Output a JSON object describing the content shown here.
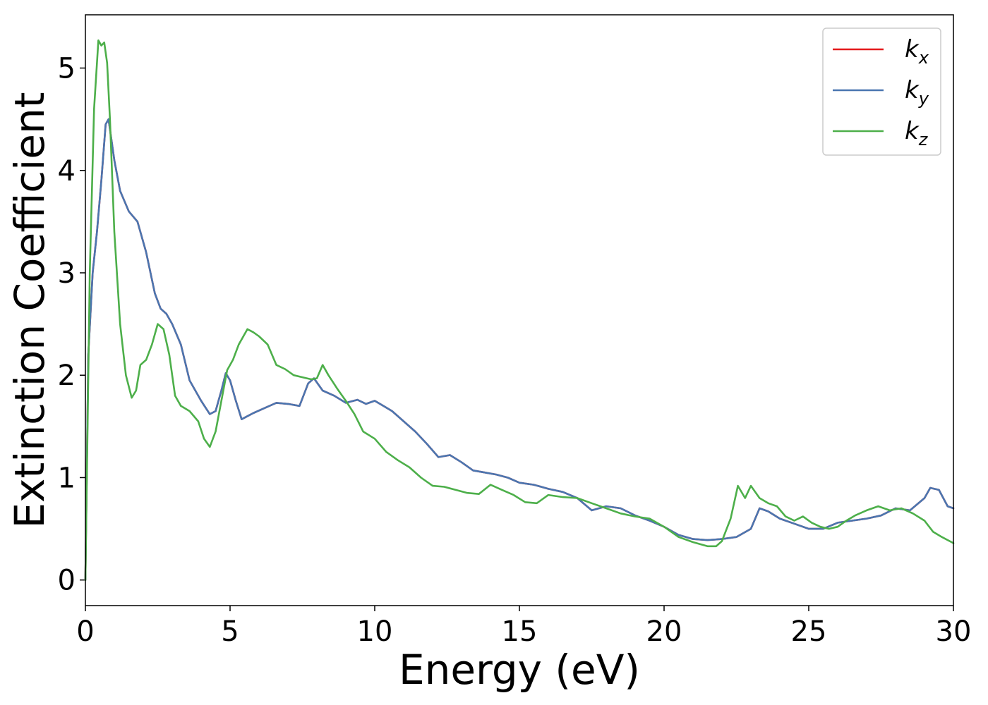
{
  "chart_data": {
    "type": "line",
    "xlabel": "Energy (eV)",
    "ylabel": "Extinction Coefficient",
    "xlim": [
      0,
      30
    ],
    "ylim": [
      -0.25,
      5.52
    ],
    "xticks": [
      0,
      5,
      10,
      15,
      20,
      25,
      30
    ],
    "yticks": [
      0,
      1,
      2,
      3,
      4,
      5
    ],
    "grid": false,
    "legend_position": "top-right",
    "series": [
      {
        "name": "k_x",
        "label_main": "k",
        "label_sub": "x",
        "color": "#e41a1c",
        "x": [
          0,
          0.1,
          0.25,
          0.4,
          0.55,
          0.7,
          0.8,
          0.9,
          1.0,
          1.2,
          1.5,
          1.8,
          2.1,
          2.4,
          2.6,
          2.8,
          3.0,
          3.3,
          3.6,
          4.0,
          4.3,
          4.5,
          4.7,
          4.85,
          5.0,
          5.2,
          5.4,
          5.6,
          5.8,
          6.2,
          6.6,
          7.0,
          7.4,
          7.7,
          7.9,
          8.2,
          8.6,
          9.0,
          9.4,
          9.7,
          10.0,
          10.3,
          10.6,
          11.0,
          11.4,
          11.8,
          12.2,
          12.6,
          13.0,
          13.4,
          13.8,
          14.2,
          14.6,
          15.0,
          15.5,
          16.0,
          16.5,
          17.0,
          17.5,
          18.0,
          18.5,
          19.0,
          19.5,
          20.0,
          20.5,
          21.0,
          21.5,
          22.0,
          22.5,
          23.0,
          23.3,
          23.6,
          24.0,
          24.5,
          25.0,
          25.5,
          26.0,
          26.5,
          27.0,
          27.5,
          28.0,
          28.5,
          29.0,
          29.2,
          29.5,
          29.8,
          30.0
        ],
        "y": [
          0,
          2.2,
          3.0,
          3.4,
          3.9,
          4.45,
          4.5,
          4.3,
          4.1,
          3.8,
          3.6,
          3.5,
          3.2,
          2.8,
          2.65,
          2.6,
          2.5,
          2.3,
          1.95,
          1.75,
          1.62,
          1.65,
          1.85,
          2.02,
          1.95,
          1.75,
          1.57,
          1.6,
          1.63,
          1.68,
          1.73,
          1.72,
          1.7,
          1.92,
          1.97,
          1.85,
          1.8,
          1.73,
          1.76,
          1.72,
          1.75,
          1.7,
          1.65,
          1.55,
          1.45,
          1.33,
          1.2,
          1.22,
          1.15,
          1.07,
          1.05,
          1.03,
          1.0,
          0.95,
          0.93,
          0.89,
          0.86,
          0.8,
          0.68,
          0.72,
          0.7,
          0.63,
          0.58,
          0.52,
          0.44,
          0.4,
          0.39,
          0.4,
          0.42,
          0.5,
          0.7,
          0.67,
          0.6,
          0.55,
          0.5,
          0.5,
          0.56,
          0.58,
          0.6,
          0.63,
          0.7,
          0.68,
          0.8,
          0.9,
          0.88,
          0.72,
          0.7
        ]
      },
      {
        "name": "k_y",
        "label_main": "k",
        "label_sub": "y",
        "color": "#4a76b0",
        "x": [
          0,
          0.1,
          0.25,
          0.4,
          0.55,
          0.7,
          0.8,
          0.9,
          1.0,
          1.2,
          1.5,
          1.8,
          2.1,
          2.4,
          2.6,
          2.8,
          3.0,
          3.3,
          3.6,
          4.0,
          4.3,
          4.5,
          4.7,
          4.85,
          5.0,
          5.2,
          5.4,
          5.6,
          5.8,
          6.2,
          6.6,
          7.0,
          7.4,
          7.7,
          7.9,
          8.2,
          8.6,
          9.0,
          9.4,
          9.7,
          10.0,
          10.3,
          10.6,
          11.0,
          11.4,
          11.8,
          12.2,
          12.6,
          13.0,
          13.4,
          13.8,
          14.2,
          14.6,
          15.0,
          15.5,
          16.0,
          16.5,
          17.0,
          17.5,
          18.0,
          18.5,
          19.0,
          19.5,
          20.0,
          20.5,
          21.0,
          21.5,
          22.0,
          22.5,
          23.0,
          23.3,
          23.6,
          24.0,
          24.5,
          25.0,
          25.5,
          26.0,
          26.5,
          27.0,
          27.5,
          28.0,
          28.5,
          29.0,
          29.2,
          29.5,
          29.8,
          30.0
        ],
        "y": [
          0,
          2.2,
          3.0,
          3.4,
          3.9,
          4.45,
          4.5,
          4.3,
          4.1,
          3.8,
          3.6,
          3.5,
          3.2,
          2.8,
          2.65,
          2.6,
          2.5,
          2.3,
          1.95,
          1.75,
          1.62,
          1.65,
          1.85,
          2.02,
          1.95,
          1.75,
          1.57,
          1.6,
          1.63,
          1.68,
          1.73,
          1.72,
          1.7,
          1.92,
          1.97,
          1.85,
          1.8,
          1.73,
          1.76,
          1.72,
          1.75,
          1.7,
          1.65,
          1.55,
          1.45,
          1.33,
          1.2,
          1.22,
          1.15,
          1.07,
          1.05,
          1.03,
          1.0,
          0.95,
          0.93,
          0.89,
          0.86,
          0.8,
          0.68,
          0.72,
          0.7,
          0.63,
          0.58,
          0.52,
          0.44,
          0.4,
          0.39,
          0.4,
          0.42,
          0.5,
          0.7,
          0.67,
          0.6,
          0.55,
          0.5,
          0.5,
          0.56,
          0.58,
          0.6,
          0.63,
          0.7,
          0.68,
          0.8,
          0.9,
          0.88,
          0.72,
          0.7
        ]
      },
      {
        "name": "k_z",
        "label_main": "k",
        "label_sub": "z",
        "color": "#4daf4a",
        "x": [
          0,
          0.15,
          0.3,
          0.45,
          0.55,
          0.65,
          0.75,
          0.85,
          1.0,
          1.2,
          1.4,
          1.6,
          1.75,
          1.9,
          2.1,
          2.3,
          2.5,
          2.7,
          2.9,
          3.1,
          3.3,
          3.6,
          3.9,
          4.1,
          4.3,
          4.5,
          4.7,
          4.9,
          5.1,
          5.3,
          5.6,
          5.8,
          6.0,
          6.3,
          6.6,
          6.9,
          7.2,
          7.5,
          7.8,
          8.0,
          8.2,
          8.4,
          8.7,
          9.0,
          9.3,
          9.6,
          10.0,
          10.4,
          10.8,
          11.2,
          11.6,
          12.0,
          12.4,
          12.8,
          13.2,
          13.6,
          14.0,
          14.4,
          14.8,
          15.2,
          15.6,
          16.0,
          16.5,
          17.0,
          17.5,
          18.0,
          18.5,
          19.0,
          19.5,
          20.0,
          20.5,
          21.0,
          21.5,
          21.8,
          22.0,
          22.3,
          22.55,
          22.8,
          23.0,
          23.3,
          23.6,
          23.9,
          24.2,
          24.5,
          24.8,
          25.1,
          25.4,
          25.7,
          26.0,
          26.3,
          26.6,
          27.0,
          27.4,
          27.8,
          28.2,
          28.6,
          29.0,
          29.3,
          29.6,
          30.0
        ],
        "y": [
          0,
          3.0,
          4.6,
          5.27,
          5.22,
          5.25,
          5.05,
          4.5,
          3.4,
          2.5,
          2.0,
          1.78,
          1.85,
          2.1,
          2.15,
          2.3,
          2.5,
          2.45,
          2.2,
          1.8,
          1.7,
          1.65,
          1.55,
          1.38,
          1.3,
          1.45,
          1.75,
          2.05,
          2.15,
          2.3,
          2.45,
          2.42,
          2.38,
          2.3,
          2.1,
          2.06,
          2.0,
          1.98,
          1.96,
          1.97,
          2.1,
          2.0,
          1.87,
          1.75,
          1.62,
          1.45,
          1.38,
          1.25,
          1.17,
          1.1,
          1.0,
          0.92,
          0.91,
          0.88,
          0.85,
          0.84,
          0.93,
          0.88,
          0.83,
          0.76,
          0.75,
          0.83,
          0.81,
          0.8,
          0.75,
          0.7,
          0.65,
          0.62,
          0.6,
          0.52,
          0.42,
          0.37,
          0.33,
          0.33,
          0.38,
          0.6,
          0.92,
          0.8,
          0.92,
          0.8,
          0.75,
          0.72,
          0.62,
          0.58,
          0.62,
          0.56,
          0.52,
          0.5,
          0.52,
          0.58,
          0.63,
          0.68,
          0.72,
          0.68,
          0.7,
          0.65,
          0.58,
          0.47,
          0.42,
          0.36
        ]
      }
    ]
  }
}
